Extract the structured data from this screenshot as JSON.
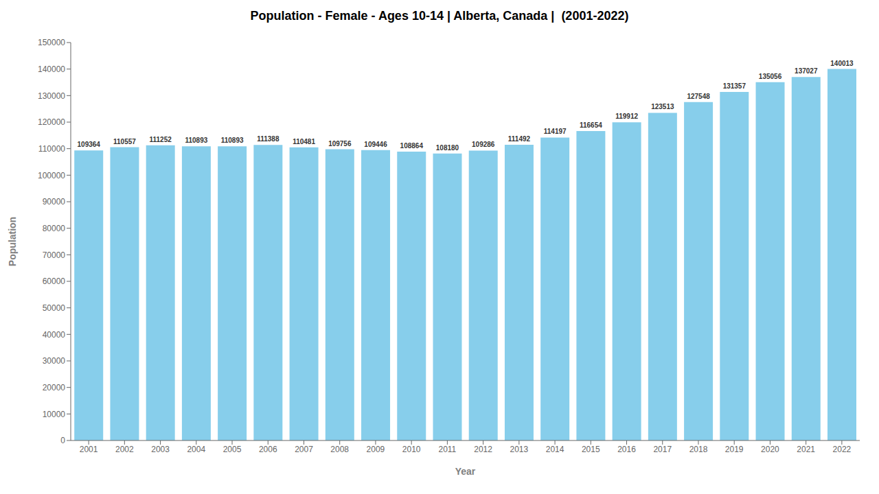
{
  "chart_data": {
    "type": "bar",
    "title": "Population - Female - Ages 10-14 | Alberta, Canada |  (2001-2022)",
    "xlabel": "Year",
    "ylabel": "Population",
    "categories": [
      "2001",
      "2002",
      "2003",
      "2004",
      "2005",
      "2006",
      "2007",
      "2008",
      "2009",
      "2010",
      "2011",
      "2012",
      "2013",
      "2014",
      "2015",
      "2016",
      "2017",
      "2018",
      "2019",
      "2020",
      "2021",
      "2022"
    ],
    "values": [
      109364,
      110557,
      111252,
      110893,
      110893,
      111388,
      110481,
      109756,
      109446,
      108864,
      108180,
      109286,
      111492,
      114197,
      116654,
      119912,
      123513,
      127548,
      131357,
      135056,
      137027,
      140013
    ],
    "color": "#87CEEB",
    "ylim": [
      0,
      150000
    ],
    "yticks": [
      0,
      10000,
      20000,
      30000,
      40000,
      50000,
      60000,
      70000,
      80000,
      90000,
      100000,
      110000,
      120000,
      130000,
      140000,
      150000
    ],
    "grid": false,
    "data_labels": true
  }
}
